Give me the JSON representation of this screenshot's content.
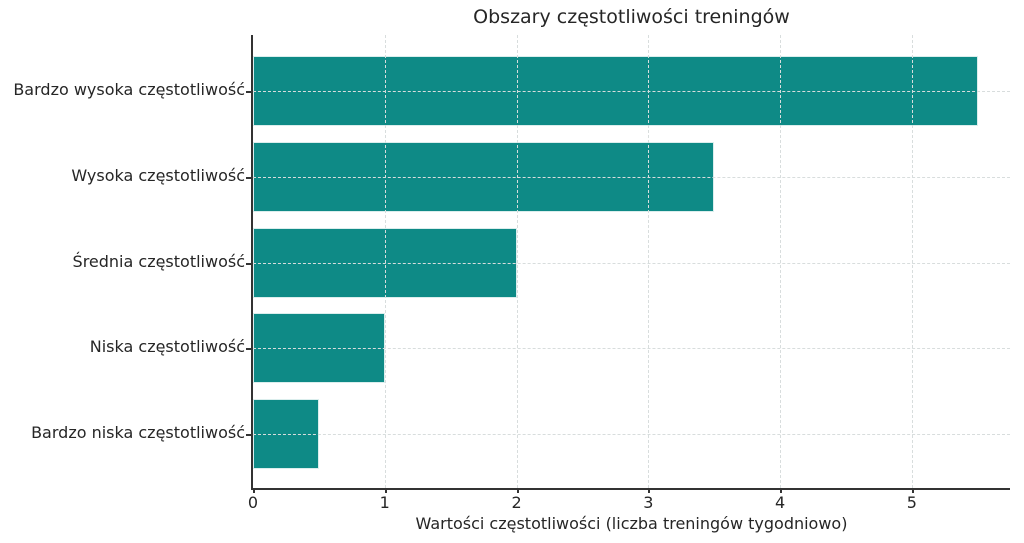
{
  "chart_data": {
    "type": "bar",
    "orientation": "horizontal",
    "title": "Obszary częstotliwości treningów",
    "categories": [
      "Bardzo wysoka częstotliwość",
      "Wysoka częstotliwość",
      "Średnia częstotliwość",
      "Niska częstotliwość",
      "Bardzo niska częstotliwość"
    ],
    "values": [
      5.5,
      3.5,
      2,
      1,
      0.5
    ],
    "xlabel": "Wartości częstotliwości (liczba treningów tygodniowo)",
    "ylabel": "",
    "xlim": [
      0,
      5.745
    ],
    "xticks": [
      "0",
      "1",
      "2",
      "3",
      "4",
      "5"
    ],
    "grid": "dashed-both-axes-over-bars",
    "legend": "none",
    "colors": {
      "bar": "#0e8a86",
      "bar_edge": "#eafaf8",
      "grid": "#d8dddd",
      "axis": "#333333",
      "text": "#262626",
      "background": "#ffffff"
    }
  }
}
